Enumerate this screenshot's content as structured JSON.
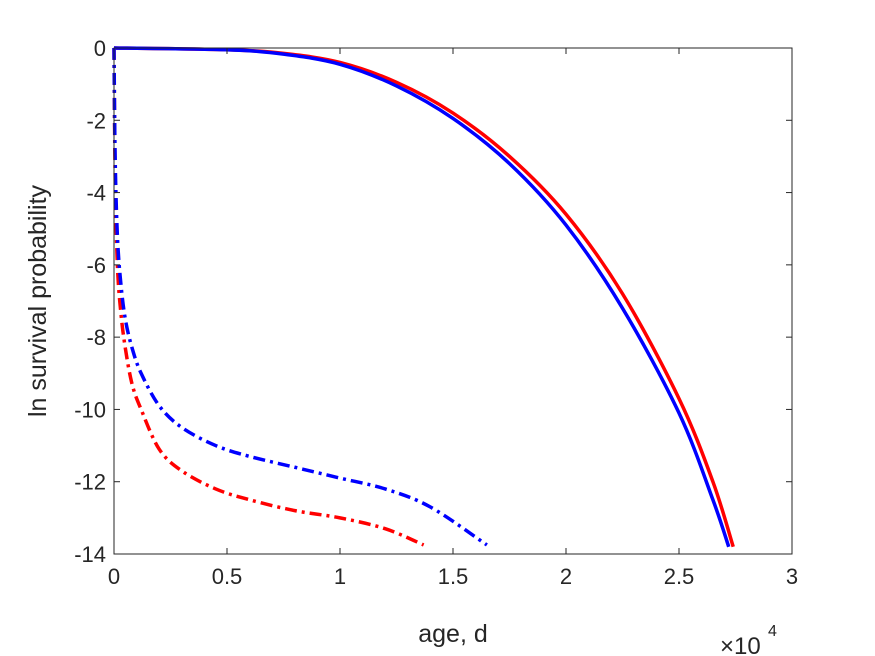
{
  "chart_data": {
    "type": "line",
    "xlabel": "age, d",
    "ylabel": "ln survival probability",
    "x_multiplier": "×10",
    "x_multiplier_exponent": "4",
    "xlim": [
      0,
      30000
    ],
    "ylim": [
      -14,
      0
    ],
    "xticks": [
      0,
      5000,
      10000,
      15000,
      20000,
      25000,
      30000
    ],
    "xtick_labels": [
      "0",
      "0.5",
      "1",
      "1.5",
      "2",
      "2.5",
      "3"
    ],
    "yticks": [
      0,
      -2,
      -4,
      -6,
      -8,
      -10,
      -12,
      -14
    ],
    "ytick_labels": [
      "0",
      "-2",
      "-4",
      "-6",
      "-8",
      "-10",
      "-12",
      "-14"
    ],
    "grid": false,
    "series": [
      {
        "color": "#ff0000",
        "style": "solid",
        "x": [
          0,
          5000,
          7500,
          10000,
          12500,
          15000,
          17500,
          20000,
          22500,
          25000,
          26500,
          27400
        ],
        "y": [
          0,
          -0.05,
          -0.15,
          -0.4,
          -0.95,
          -1.8,
          -3.0,
          -4.6,
          -6.8,
          -9.7,
          -12.0,
          -13.8
        ]
      },
      {
        "color": "#0000ff",
        "style": "solid",
        "x": [
          0,
          5000,
          7500,
          10000,
          12500,
          15000,
          17500,
          20000,
          22500,
          25000,
          26500,
          27200
        ],
        "y": [
          0,
          -0.05,
          -0.17,
          -0.45,
          -1.05,
          -1.95,
          -3.2,
          -4.9,
          -7.2,
          -10.1,
          -12.5,
          -13.8
        ]
      },
      {
        "color": "#ff0000",
        "style": "dashdot",
        "x": [
          0,
          50,
          150,
          300,
          500,
          800,
          1200,
          2000,
          3000,
          4500,
          6000,
          8000,
          10000,
          12000,
          13700
        ],
        "y": [
          0,
          -3.5,
          -6.0,
          -7.3,
          -8.3,
          -9.3,
          -10.0,
          -11.1,
          -11.7,
          -12.2,
          -12.5,
          -12.8,
          -13.0,
          -13.3,
          -13.75
        ]
      },
      {
        "color": "#0000ff",
        "style": "dashdot",
        "x": [
          0,
          50,
          150,
          300,
          500,
          800,
          1200,
          2000,
          3000,
          4500,
          6000,
          8000,
          10000,
          12000,
          14000,
          16500
        ],
        "y": [
          0,
          -3.0,
          -5.2,
          -6.5,
          -7.5,
          -8.3,
          -9.0,
          -9.9,
          -10.5,
          -11.0,
          -11.3,
          -11.6,
          -11.9,
          -12.2,
          -12.7,
          -13.75
        ]
      }
    ]
  }
}
